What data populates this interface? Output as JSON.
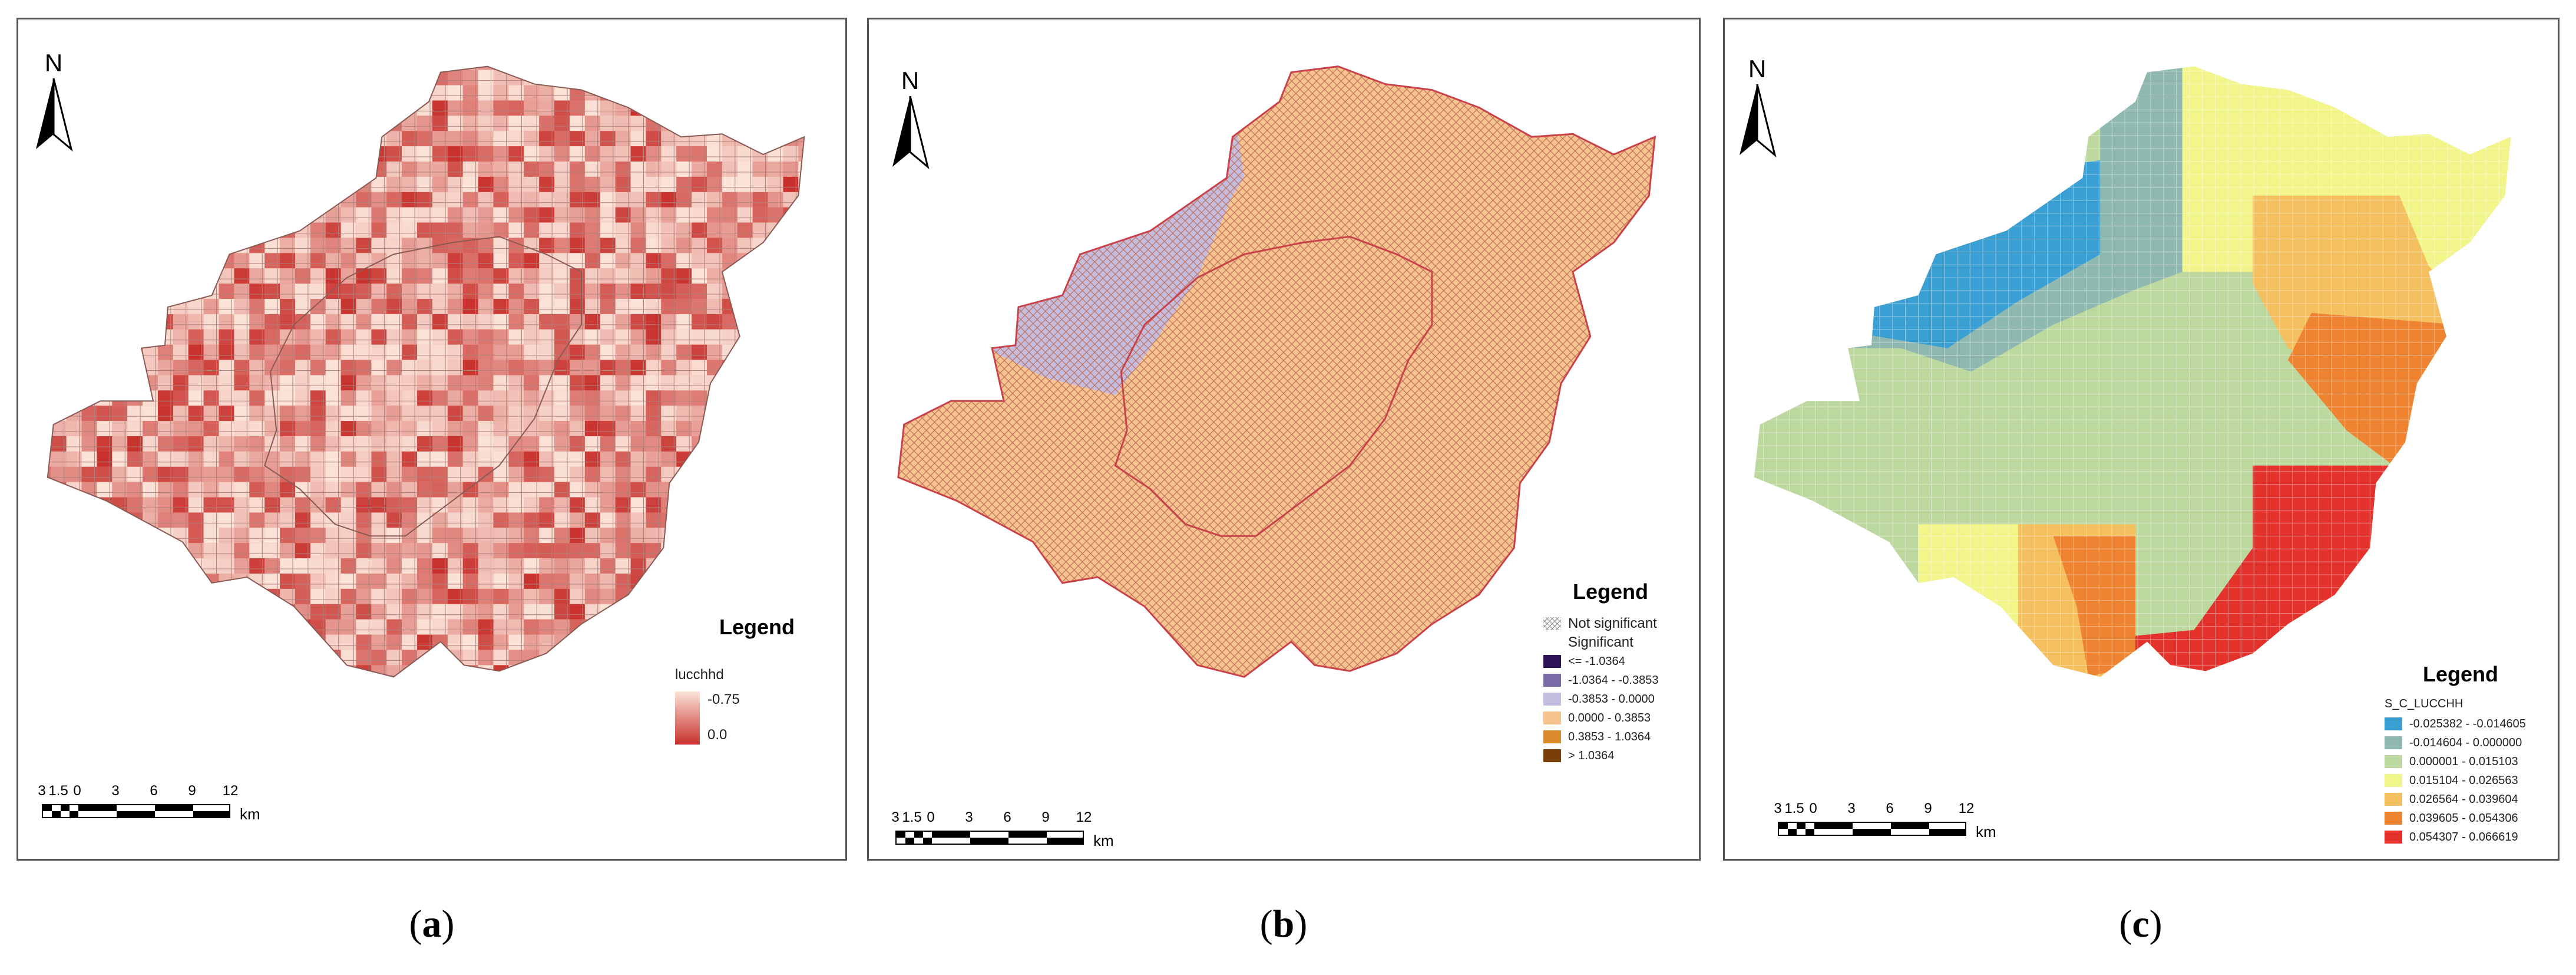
{
  "panels": [
    {
      "id": "a",
      "caption_letter": "a",
      "north_label": "N",
      "legend": {
        "title": "Legend",
        "field": "lucchhd",
        "gradient_top": "-0.75",
        "gradient_bottom": "0.0",
        "color_low": "#fbe3d8",
        "color_high": "#c8302c"
      },
      "scale": {
        "ticks": [
          "3",
          "1.5",
          "0",
          "3",
          "6",
          "9",
          "12"
        ],
        "unit": "km"
      }
    },
    {
      "id": "b",
      "caption_letter": "b",
      "north_label": "N",
      "legend": {
        "title": "Legend",
        "items": [
          {
            "label": "Not significant",
            "style": "hatch",
            "color": "#ffffff"
          },
          {
            "label": "Significant",
            "style": "blank",
            "color": "#ffffff"
          },
          {
            "label": "<= -1.0364",
            "style": "fill",
            "color": "#2e1456"
          },
          {
            "label": "-1.0364 - -0.3853",
            "style": "fill",
            "color": "#7a6aa8"
          },
          {
            "label": "-0.3853 - 0.0000",
            "style": "fill",
            "color": "#c4bde0"
          },
          {
            "label": "0.0000 - 0.3853",
            "style": "fill",
            "color": "#f6c48e"
          },
          {
            "label": "0.3853 - 1.0364",
            "style": "fill",
            "color": "#d98b2c"
          },
          {
            "label": "> 1.0364",
            "style": "fill",
            "color": "#7a3e08"
          }
        ]
      },
      "scale": {
        "ticks": [
          "3",
          "1.5",
          "0",
          "3",
          "6",
          "9",
          "12"
        ],
        "unit": "km"
      }
    },
    {
      "id": "c",
      "caption_letter": "c",
      "north_label": "N",
      "legend": {
        "title": "Legend",
        "field": "S_C_LUCCHH",
        "items": [
          {
            "label": "-0.025382 - -0.014605",
            "color": "#3a9fd3"
          },
          {
            "label": "-0.014604 - 0.000000",
            "color": "#8fb9b0"
          },
          {
            "label": "0.000001 - 0.015103",
            "color": "#bcd89e"
          },
          {
            "label": "0.015104 - 0.026563",
            "color": "#f2f58a"
          },
          {
            "label": "0.026564 - 0.039604",
            "color": "#f4bf5e"
          },
          {
            "label": "0.039605 - 0.054306",
            "color": "#ee8332"
          },
          {
            "label": "0.054307 - 0.066619",
            "color": "#e3312c"
          }
        ]
      },
      "scale": {
        "ticks": [
          "3",
          "1.5",
          "0",
          "3",
          "6",
          "9",
          "12"
        ],
        "unit": "km"
      }
    }
  ]
}
